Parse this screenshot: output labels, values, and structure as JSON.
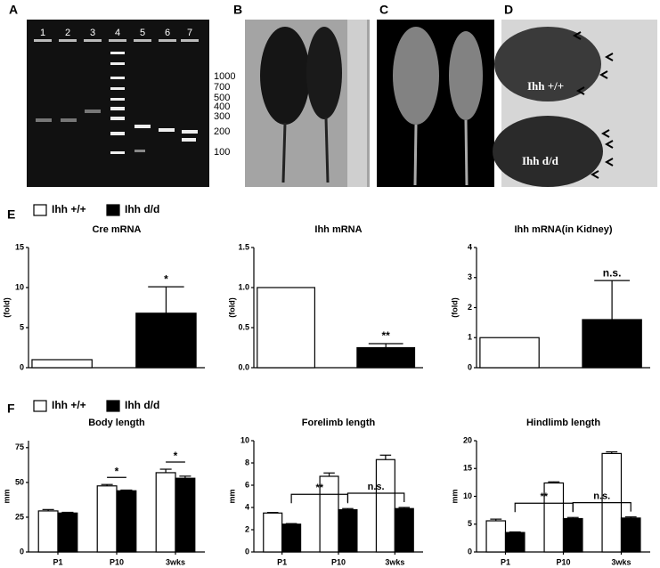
{
  "panel_labels": [
    "A",
    "B",
    "C",
    "D",
    "E",
    "F"
  ],
  "gel": {
    "lanes": [
      "1",
      "2",
      "3",
      "4",
      "5",
      "6",
      "7"
    ],
    "ladder": [
      "1000",
      "700",
      "500",
      "400",
      "300",
      "200",
      "100"
    ]
  },
  "paws": {
    "labels": [
      "Ihh +/+",
      "Ihh d/d"
    ]
  },
  "chart_data": [
    {
      "type": "bar",
      "title": "Cre mRNA",
      "ylabel": "(fold)",
      "categories": [
        null
      ],
      "series": [
        {
          "name": "Ihh +/+",
          "color": "#ffffff",
          "values": [
            1
          ],
          "errors": [
            0
          ]
        },
        {
          "name": "Ihh d/d",
          "color": "#000000",
          "values": [
            6.8
          ],
          "errors": [
            3.3
          ]
        }
      ],
      "ylim": [
        0,
        15
      ],
      "yticks": [
        0,
        5,
        10,
        15
      ],
      "annotations": [
        "*"
      ]
    },
    {
      "type": "bar",
      "title": "Ihh mRNA",
      "ylabel": "(fold)",
      "categories": [
        null
      ],
      "series": [
        {
          "color": "#ffffff",
          "values": [
            1.0
          ],
          "errors": [
            0
          ]
        },
        {
          "color": "#000000",
          "values": [
            0.25
          ],
          "errors": [
            0.05
          ]
        }
      ],
      "ylim": [
        0,
        1.5
      ],
      "yticks": [
        {
          "value": 0,
          "label": "0.0"
        },
        0.5,
        {
          "value": 1,
          "label": "1.0"
        },
        1.5
      ],
      "annotations": [
        "**"
      ]
    },
    {
      "type": "bar",
      "title": "Ihh mRNA(in Kidney)",
      "ylabel": "(fold)",
      "categories": [
        null
      ],
      "series": [
        {
          "color": "#ffffff",
          "values": [
            1
          ],
          "errors": [
            0
          ]
        },
        {
          "color": "#000000",
          "values": [
            1.6
          ],
          "errors": [
            1.3
          ]
        }
      ],
      "ylim": [
        0,
        4
      ],
      "yticks": [
        0,
        1,
        2,
        3,
        4
      ],
      "annotations": [
        "n.s."
      ]
    },
    {
      "type": "bar",
      "title": "Body length",
      "ylabel": "mm",
      "categories": [
        "P1",
        "P10",
        "3wks"
      ],
      "series": [
        {
          "name": "Ihh +/+",
          "color": "#ffffff",
          "values": [
            29.5,
            47.5,
            57
          ],
          "errors": [
            1,
            1,
            2.5
          ]
        },
        {
          "name": "Ihh d/d",
          "color": "#000000",
          "values": [
            28,
            44,
            53
          ],
          "errors": [
            0.5,
            0.5,
            1.5
          ]
        }
      ],
      "ylim": [
        0,
        80
      ],
      "yticks": [
        0,
        25,
        50,
        75
      ],
      "annotations": [
        "*",
        "*"
      ]
    },
    {
      "type": "bar",
      "title": "Forelimb length",
      "ylabel": "mm",
      "categories": [
        "P1",
        "P10",
        "3wks"
      ],
      "series": [
        {
          "color": "#ffffff",
          "values": [
            3.5,
            6.8,
            8.3
          ],
          "errors": [
            0.05,
            0.3,
            0.4
          ]
        },
        {
          "color": "#000000",
          "values": [
            2.5,
            3.8,
            3.9
          ],
          "errors": [
            0.05,
            0.1,
            0.1
          ]
        }
      ],
      "ylim": [
        0,
        10
      ],
      "yticks": [
        0,
        2,
        4,
        6,
        8,
        10
      ],
      "annotations": [
        "**",
        "n.s."
      ]
    },
    {
      "type": "bar",
      "title": "Hindlimb length",
      "ylabel": "mm",
      "categories": [
        "P1",
        "P10",
        "3wks"
      ],
      "series": [
        {
          "color": "#ffffff",
          "values": [
            5.6,
            12.4,
            17.7
          ],
          "errors": [
            0.3,
            0.2,
            0.3
          ]
        },
        {
          "color": "#000000",
          "values": [
            3.5,
            6.0,
            6.1
          ],
          "errors": [
            0.1,
            0.2,
            0.2
          ]
        }
      ],
      "ylim": [
        0,
        20
      ],
      "yticks": [
        0,
        5,
        10,
        15,
        20
      ],
      "annotations": [
        "**",
        "n.s."
      ]
    }
  ]
}
